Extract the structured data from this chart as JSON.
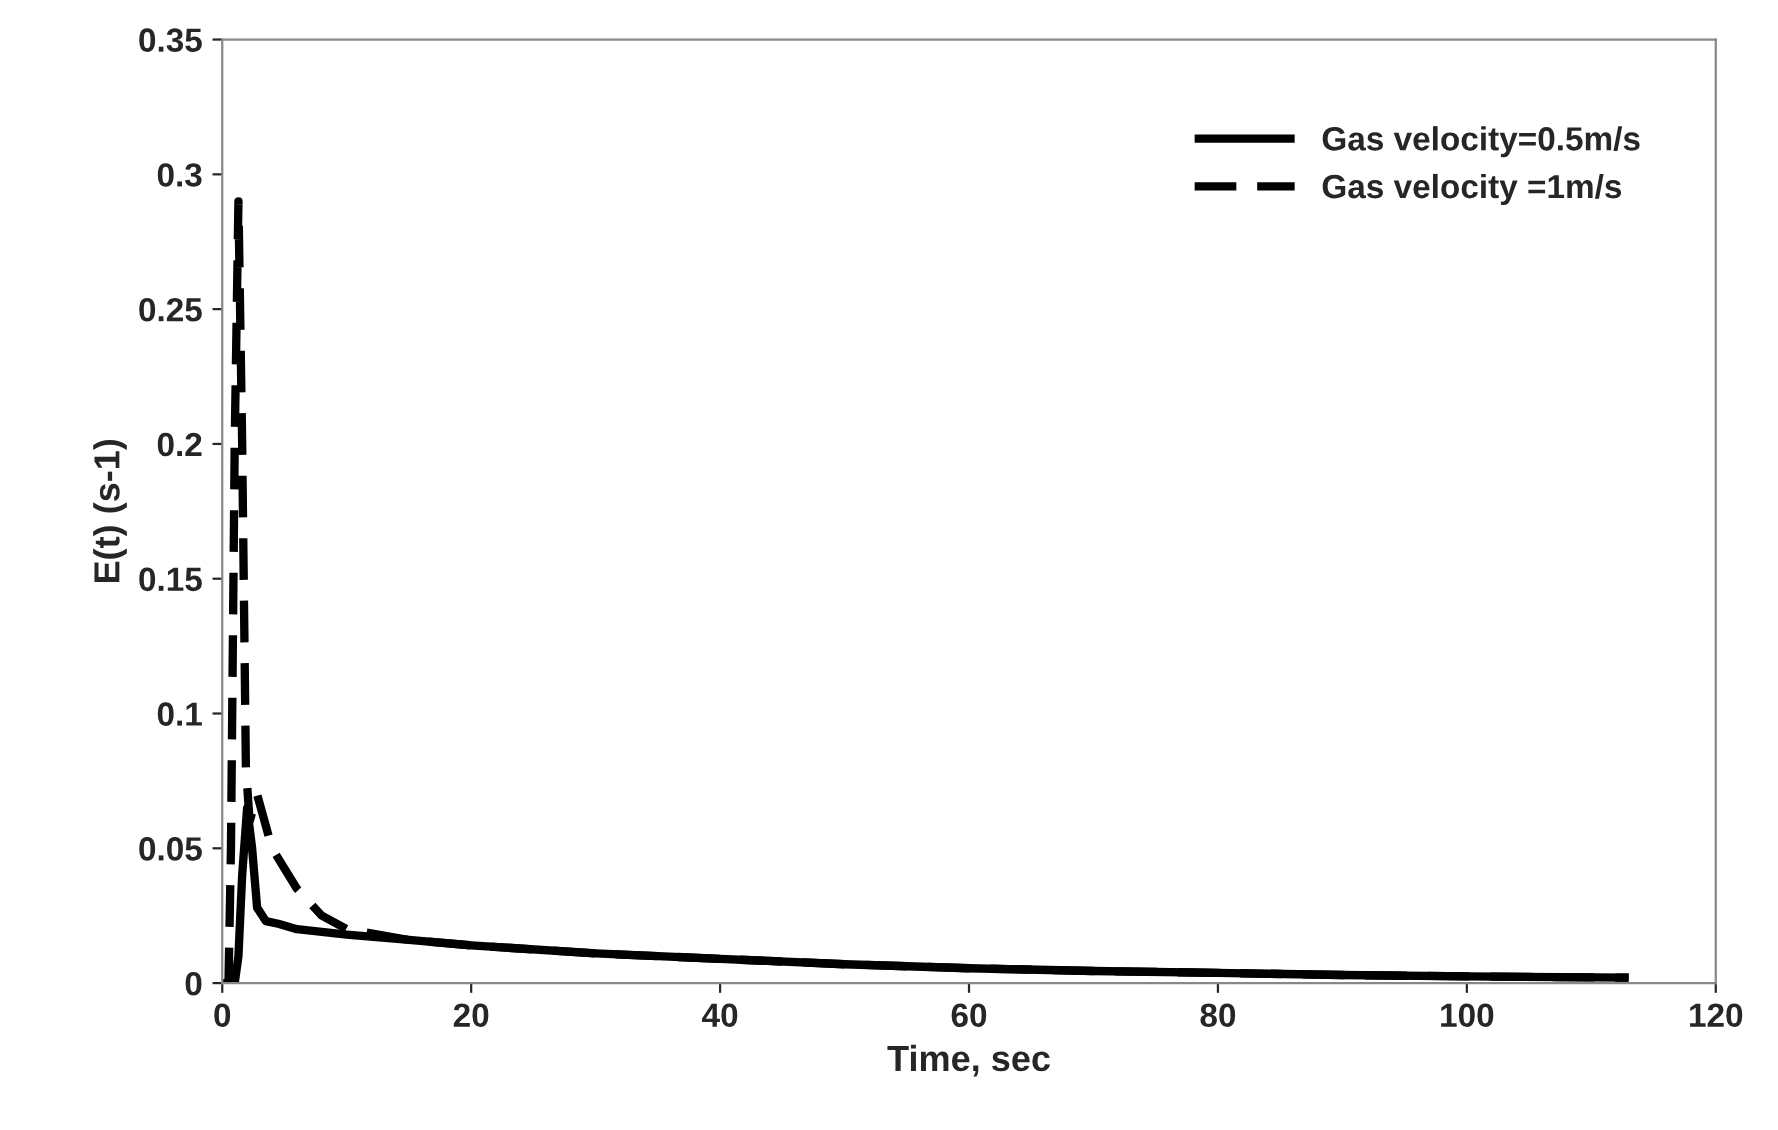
{
  "chart_data": {
    "type": "line",
    "xlabel": "Time, sec",
    "ylabel": "E(t) (s-1)",
    "xlim": [
      0,
      120
    ],
    "xticks": [
      0,
      20,
      40,
      60,
      80,
      100,
      120
    ],
    "ylim": [
      0,
      0.35
    ],
    "yticks": [
      0,
      0.05,
      0.1,
      0.15,
      0.2,
      0.25,
      0.3,
      0.35
    ],
    "grid": false,
    "legend": "top right",
    "marker": "none",
    "series": [
      {
        "name": "Gas velocity=0.5m/s",
        "color": "#000000",
        "line_style": "solid",
        "x": [
          0,
          1.0,
          1.3,
          1.6,
          2.0,
          2.4,
          2.8,
          3.5,
          4.5,
          6,
          10,
          15,
          20,
          30,
          40,
          50,
          60,
          70,
          80,
          90,
          100,
          113
        ],
        "values": [
          0,
          0,
          0.01,
          0.04,
          0.065,
          0.05,
          0.028,
          0.023,
          0.022,
          0.02,
          0.018,
          0.016,
          0.014,
          0.011,
          0.009,
          0.007,
          0.0055,
          0.0045,
          0.0038,
          0.003,
          0.0025,
          0.002
        ]
      },
      {
        "name": "Gas velocity =1m/s",
        "color": "#000000",
        "line_style": "dashed",
        "x": [
          0,
          0.5,
          0.7,
          1.0,
          1.3,
          1.6,
          1.9,
          2.2,
          2.8,
          4,
          6,
          8,
          10,
          15,
          20,
          30,
          40,
          50,
          60,
          70,
          80,
          90,
          100,
          113
        ],
        "values": [
          0,
          0,
          0.05,
          0.2,
          0.29,
          0.2,
          0.08,
          0.06,
          0.07,
          0.05,
          0.035,
          0.025,
          0.02,
          0.016,
          0.014,
          0.011,
          0.009,
          0.007,
          0.0055,
          0.0045,
          0.0038,
          0.003,
          0.0025,
          0.002
        ]
      }
    ]
  }
}
